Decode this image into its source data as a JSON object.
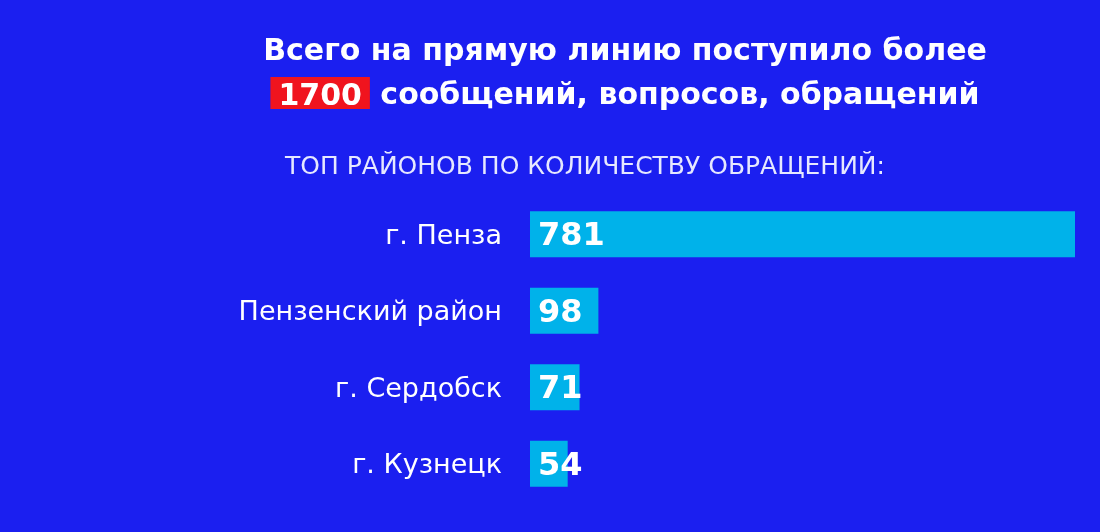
{
  "chart_data": {
    "type": "bar",
    "orientation": "horizontal",
    "title": "Всего на прямую линию поступило более\n1700 сообщений, вопросов, обращений",
    "subtitle": "ТОП РАЙОНОВ ПО КОЛИЧЕСТВУ ОБРАЩЕНИЙ:",
    "categories": [
      "г. Пенза",
      "Пензенский район",
      "г. Сердобск",
      "г. Кузнецк"
    ],
    "values": [
      781,
      98,
      71,
      54
    ],
    "color": "#00b2ea",
    "data_labels": true
  }
}
